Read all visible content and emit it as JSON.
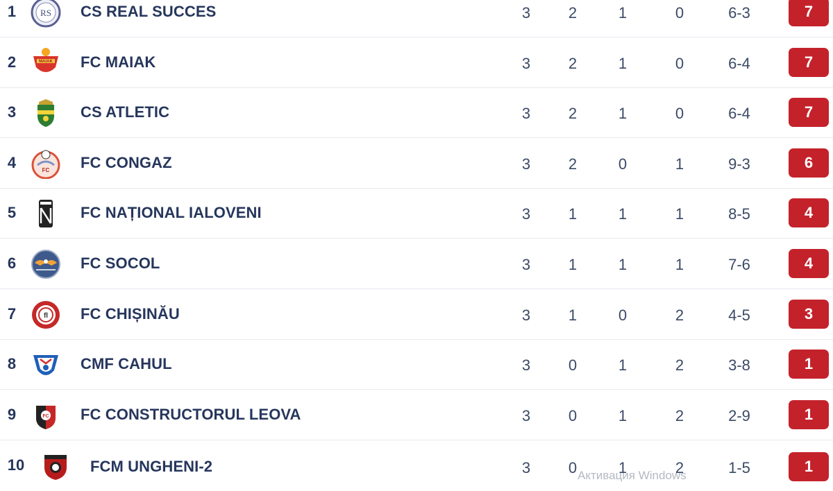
{
  "standings": [
    {
      "rank": "1",
      "team": "CS REAL SUCCES",
      "p": "3",
      "w": "2",
      "d": "1",
      "l": "0",
      "goals": "6-3",
      "pts": "7",
      "logo": "real-succes-crest-icon"
    },
    {
      "rank": "2",
      "team": "FC MAIAK",
      "p": "3",
      "w": "2",
      "d": "1",
      "l": "0",
      "goals": "6-4",
      "pts": "7",
      "logo": "maiak-crest-icon"
    },
    {
      "rank": "3",
      "team": "CS ATLETIC",
      "p": "3",
      "w": "2",
      "d": "1",
      "l": "0",
      "goals": "6-4",
      "pts": "7",
      "logo": "atletic-crest-icon"
    },
    {
      "rank": "4",
      "team": "FC CONGAZ",
      "p": "3",
      "w": "2",
      "d": "0",
      "l": "1",
      "goals": "9-3",
      "pts": "6",
      "logo": "congaz-crest-icon"
    },
    {
      "rank": "5",
      "team": "FC NAȚIONAL IALOVENI",
      "p": "3",
      "w": "1",
      "d": "1",
      "l": "1",
      "goals": "8-5",
      "pts": "4",
      "logo": "national-ialoveni-crest-icon"
    },
    {
      "rank": "6",
      "team": "FC SOCOL",
      "p": "3",
      "w": "1",
      "d": "1",
      "l": "1",
      "goals": "7-6",
      "pts": "4",
      "logo": "socol-crest-icon"
    },
    {
      "rank": "7",
      "team": "FC CHIȘINĂU",
      "p": "3",
      "w": "1",
      "d": "0",
      "l": "2",
      "goals": "4-5",
      "pts": "3",
      "logo": "chisinau-crest-icon"
    },
    {
      "rank": "8",
      "team": "CMF CAHUL",
      "p": "3",
      "w": "0",
      "d": "1",
      "l": "2",
      "goals": "3-8",
      "pts": "1",
      "logo": "cahul-crest-icon"
    },
    {
      "rank": "9",
      "team": "FC CONSTRUCTORUL LEOVA",
      "p": "3",
      "w": "0",
      "d": "1",
      "l": "2",
      "goals": "2-9",
      "pts": "1",
      "logo": "constructorul-leova-crest-icon"
    },
    {
      "rank": "10",
      "team": "FCM UNGHENI-2",
      "p": "3",
      "w": "0",
      "d": "1",
      "l": "2",
      "goals": "1-5",
      "pts": "1",
      "logo": "ungheni-crest-icon"
    }
  ],
  "colors": {
    "points_badge": "#c4222b",
    "text": "#26365c",
    "row_divider": "#e7e9ee"
  },
  "watermark": "Активация Windows"
}
